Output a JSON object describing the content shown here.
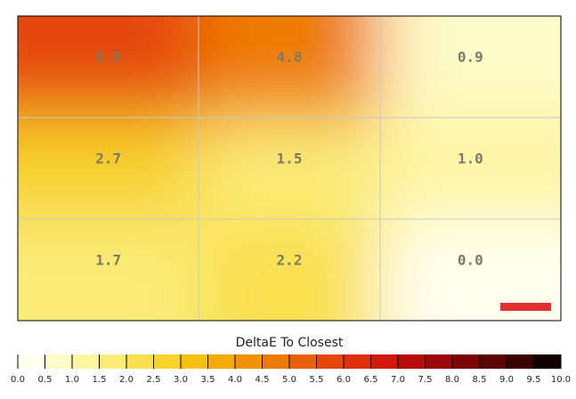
{
  "chart_data": {
    "type": "heatmap",
    "z": [
      [
        5.5,
        4.8,
        0.9
      ],
      [
        2.7,
        1.5,
        1.0
      ],
      [
        1.7,
        2.2,
        0.0
      ]
    ],
    "value_labels": [
      [
        "5.5",
        "4.8",
        "0.9"
      ],
      [
        "2.7",
        "1.5",
        "1.0"
      ],
      [
        "1.7",
        "2.2",
        "0.0"
      ]
    ],
    "colorbar_title": "DeltaE To Closest",
    "colorbar_ticks": [
      {
        "value": 0,
        "label": "0.0"
      },
      {
        "value": 0.5,
        "label": "0.5"
      },
      {
        "value": 1,
        "label": "1.0"
      },
      {
        "value": 1.5,
        "label": "1.5"
      },
      {
        "value": 2,
        "label": "2.0"
      },
      {
        "value": 2.5,
        "label": "2.5"
      },
      {
        "value": 3,
        "label": "3.0"
      },
      {
        "value": 3.5,
        "label": "3.5"
      },
      {
        "value": 4,
        "label": "4.0"
      },
      {
        "value": 4.5,
        "label": "4.5"
      },
      {
        "value": 5,
        "label": "5.0"
      },
      {
        "value": 5.5,
        "label": "5.5"
      },
      {
        "value": 6,
        "label": "6.0"
      },
      {
        "value": 6.5,
        "label": "6.5"
      },
      {
        "value": 7,
        "label": "7.0"
      },
      {
        "value": 7.5,
        "label": "7.5"
      },
      {
        "value": 8,
        "label": "8.0"
      },
      {
        "value": 8.5,
        "label": "8.5"
      },
      {
        "value": 9,
        "label": "9.0"
      },
      {
        "value": 9.5,
        "label": "9.5"
      },
      {
        "value": 10,
        "label": "10.0"
      }
    ],
    "colorscale": [
      "#fffff0",
      "#fefbc8",
      "#fdf5a0",
      "#fbec78",
      "#f9e050",
      "#f7d22a",
      "#f5c010",
      "#f3aa08",
      "#f19206",
      "#ee7a06",
      "#ea6008",
      "#e5460a",
      "#de2e0c",
      "#d0180c",
      "#b80c0a",
      "#9a0808",
      "#7a0606",
      "#5a0404",
      "#3a0202",
      "#100000"
    ]
  }
}
